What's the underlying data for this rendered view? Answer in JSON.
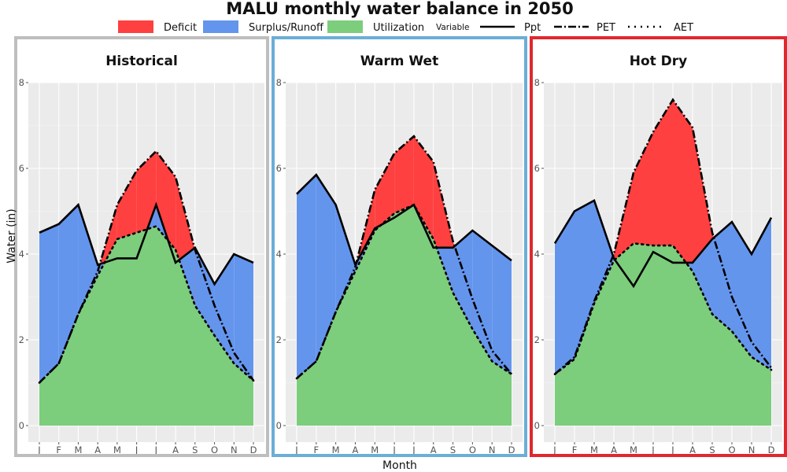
{
  "chart_data": {
    "type": "area",
    "title": "MALU monthly water balance in 2050",
    "xlabel": "Month",
    "ylabel": "Water (in)",
    "ylim": [
      0,
      8
    ],
    "yticks": [
      "0",
      "2",
      "4",
      "6",
      "8"
    ],
    "categories": [
      "J",
      "F",
      "M",
      "A",
      "M",
      "J",
      "J",
      "A",
      "S",
      "O",
      "N",
      "D"
    ],
    "legend": {
      "fill_entries": [
        {
          "label": "Deficit",
          "color": "#ff4040"
        },
        {
          "label": "Surplus/Runoff",
          "color": "#6495ed"
        },
        {
          "label": "Utilization",
          "color": "#7ccd7c"
        }
      ],
      "line_title": "Variable",
      "line_entries": [
        {
          "label": "Ppt",
          "style": "solid"
        },
        {
          "label": "PET",
          "style": "dashdot"
        },
        {
          "label": "AET",
          "style": "dotted"
        }
      ]
    },
    "panels": [
      {
        "label": "Historical",
        "border_color": "#bebebe",
        "ppt": [
          4.5,
          4.7,
          5.15,
          3.75,
          3.9,
          3.9,
          5.15,
          3.8,
          4.15,
          3.3,
          4.0,
          3.8
        ],
        "pet": [
          1.0,
          1.45,
          2.6,
          3.6,
          5.15,
          5.95,
          6.4,
          5.8,
          4.1,
          2.8,
          1.7,
          1.05
        ],
        "aet": [
          1.0,
          1.45,
          2.6,
          3.5,
          4.35,
          4.5,
          4.65,
          4.1,
          2.8,
          2.1,
          1.45,
          1.05
        ]
      },
      {
        "label": "Warm Wet",
        "border_color": "#6baed6",
        "ppt": [
          5.4,
          5.85,
          5.15,
          3.75,
          4.6,
          4.85,
          5.15,
          4.15,
          4.15,
          4.55,
          4.2,
          3.85
        ],
        "pet": [
          1.1,
          1.5,
          2.65,
          3.7,
          5.5,
          6.35,
          6.75,
          6.15,
          4.3,
          2.95,
          1.75,
          1.2
        ],
        "aet": [
          1.1,
          1.5,
          2.65,
          3.6,
          4.55,
          4.95,
          5.15,
          4.35,
          3.1,
          2.25,
          1.5,
          1.2
        ]
      },
      {
        "label": "Hot Dry",
        "border_color": "#e0282e",
        "ppt": [
          4.25,
          5.0,
          5.25,
          3.9,
          3.25,
          4.05,
          3.8,
          3.8,
          4.35,
          4.75,
          4.0,
          4.85
        ],
        "pet": [
          1.2,
          1.6,
          2.9,
          4.0,
          5.9,
          6.85,
          7.6,
          6.95,
          4.5,
          3.0,
          1.95,
          1.35
        ],
        "aet": [
          1.2,
          1.55,
          2.85,
          3.85,
          4.25,
          4.2,
          4.2,
          3.6,
          2.6,
          2.2,
          1.6,
          1.3
        ]
      }
    ]
  }
}
